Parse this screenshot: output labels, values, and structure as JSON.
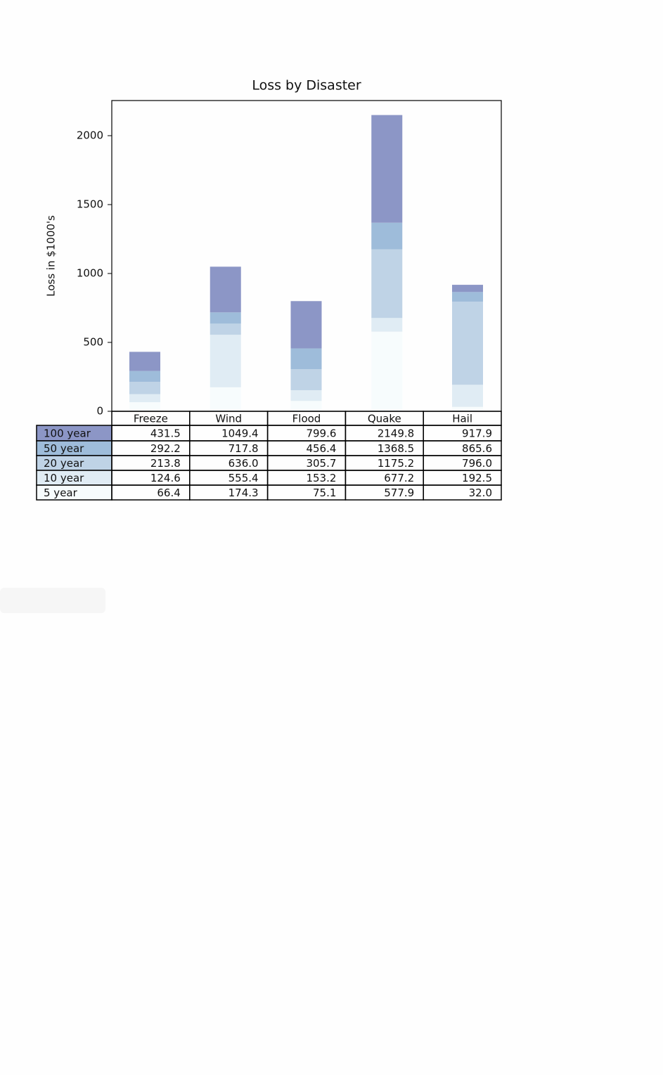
{
  "chart_data": {
    "type": "stacked_bar",
    "title": "Loss by Disaster",
    "y_label": "Loss in $1000's",
    "categories": [
      "Freeze",
      "Wind",
      "Flood",
      "Quake",
      "Hail"
    ],
    "series": [
      {
        "name": "100 year",
        "color": "#8c96c6",
        "values": [
          139.3,
          331.6,
          343.2,
          781.3,
          52.3
        ]
      },
      {
        "name": "50 year",
        "color": "#9ebcda",
        "values": [
          78.4,
          81.8,
          150.7,
          193.3,
          69.6
        ]
      },
      {
        "name": "20 year",
        "color": "#bfd3e6",
        "values": [
          89.2,
          80.6,
          152.5,
          498.0,
          603.5
        ]
      },
      {
        "name": "10 year",
        "color": "#e0ecf4",
        "values": [
          58.2,
          381.1,
          78.1,
          99.3,
          160.5
        ]
      },
      {
        "name": "5 year",
        "color": "#f7fcfd",
        "values": [
          66.4,
          174.3,
          75.1,
          577.9,
          32.0
        ]
      }
    ],
    "ylim": [
      0,
      2255
    ],
    "yticks": [
      0,
      500,
      1000,
      1500,
      2000
    ],
    "table": [
      [
        "431.5",
        "1049.4",
        "799.6",
        "2149.8",
        "917.9"
      ],
      [
        "292.2",
        "717.8",
        "456.4",
        "1368.5",
        "865.6"
      ],
      [
        "213.8",
        "636.0",
        "305.7",
        "1175.2",
        "796.0"
      ],
      [
        "124.6",
        "555.4",
        "153.2",
        "677.2",
        "192.5"
      ],
      [
        "66.4",
        "174.3",
        "75.1",
        "577.9",
        "32.0"
      ]
    ]
  }
}
